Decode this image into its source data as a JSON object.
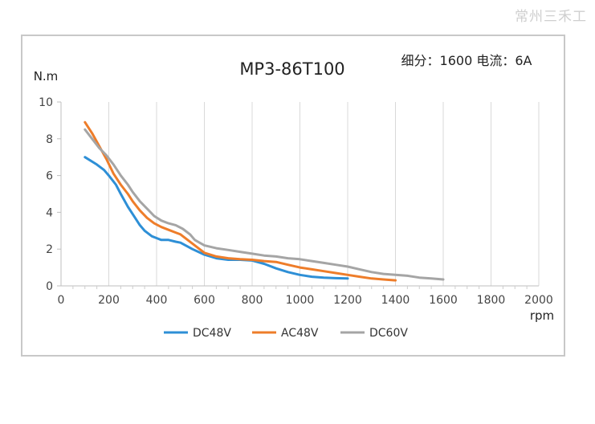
{
  "watermark": "常州三禾工",
  "chart_data": {
    "type": "line",
    "title": "MP3-86T100",
    "annotation": "细分：1600 电流：6A",
    "xlabel": "rpm",
    "ylabel": "N.m",
    "xlim": [
      0,
      2000
    ],
    "ylim": [
      0,
      10
    ],
    "x_ticks": [
      0,
      200,
      400,
      600,
      800,
      1000,
      1200,
      1400,
      1600,
      1800,
      2000
    ],
    "y_ticks": [
      0,
      2,
      4,
      6,
      8,
      10
    ],
    "grid": "vertical",
    "legend_position": "bottom",
    "series": [
      {
        "name": "DC48V",
        "color": "#2e8fd6",
        "x": [
          100,
          150,
          180,
          200,
          230,
          250,
          280,
          300,
          330,
          350,
          380,
          400,
          420,
          450,
          480,
          500,
          550,
          600,
          650,
          700,
          750,
          800,
          850,
          900,
          950,
          1000,
          1050,
          1100,
          1150,
          1200
        ],
        "y": [
          7.0,
          6.6,
          6.3,
          6.0,
          5.5,
          5.0,
          4.3,
          3.9,
          3.3,
          3.0,
          2.7,
          2.6,
          2.5,
          2.5,
          2.4,
          2.35,
          2.0,
          1.7,
          1.5,
          1.42,
          1.42,
          1.38,
          1.2,
          0.95,
          0.75,
          0.6,
          0.5,
          0.45,
          0.42,
          0.4
        ]
      },
      {
        "name": "AC48V",
        "color": "#ee7d2a",
        "x": [
          100,
          130,
          160,
          190,
          220,
          250,
          280,
          300,
          330,
          360,
          390,
          420,
          450,
          480,
          500,
          550,
          600,
          650,
          700,
          750,
          800,
          850,
          900,
          950,
          1000,
          1050,
          1100,
          1150,
          1200,
          1250,
          1300,
          1350,
          1400
        ],
        "y": [
          8.9,
          8.3,
          7.6,
          6.9,
          6.1,
          5.5,
          5.0,
          4.6,
          4.1,
          3.7,
          3.4,
          3.2,
          3.05,
          2.9,
          2.8,
          2.3,
          1.8,
          1.6,
          1.5,
          1.45,
          1.42,
          1.35,
          1.3,
          1.15,
          1.0,
          0.9,
          0.8,
          0.7,
          0.6,
          0.5,
          0.4,
          0.35,
          0.3
        ]
      },
      {
        "name": "DC60V",
        "color": "#a5a5a5",
        "x": [
          100,
          130,
          160,
          190,
          220,
          250,
          280,
          300,
          330,
          360,
          390,
          420,
          450,
          480,
          510,
          540,
          560,
          600,
          650,
          700,
          750,
          800,
          850,
          900,
          950,
          1000,
          1050,
          1100,
          1150,
          1200,
          1250,
          1300,
          1350,
          1400,
          1450,
          1500,
          1550,
          1600
        ],
        "y": [
          8.5,
          8.0,
          7.5,
          7.1,
          6.6,
          6.0,
          5.5,
          5.1,
          4.6,
          4.2,
          3.8,
          3.55,
          3.4,
          3.3,
          3.1,
          2.8,
          2.5,
          2.2,
          2.05,
          1.95,
          1.85,
          1.75,
          1.65,
          1.6,
          1.5,
          1.45,
          1.35,
          1.25,
          1.15,
          1.05,
          0.9,
          0.75,
          0.65,
          0.6,
          0.55,
          0.45,
          0.4,
          0.35
        ]
      }
    ]
  }
}
